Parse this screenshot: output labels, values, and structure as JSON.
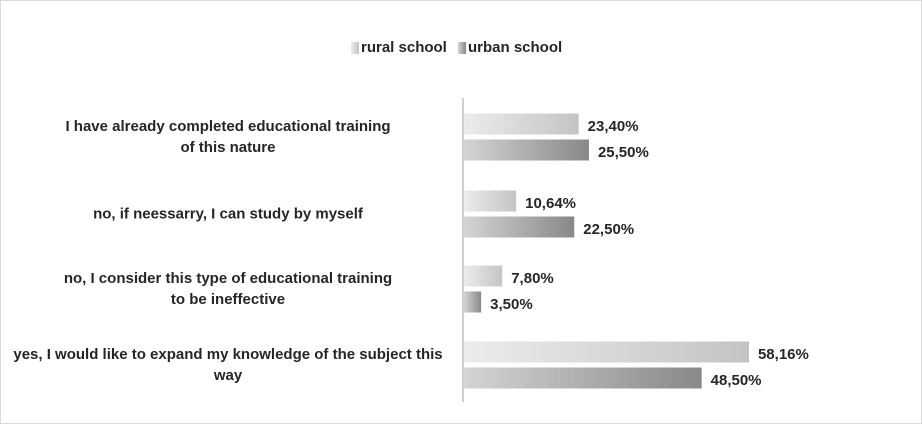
{
  "chart_data": {
    "type": "bar",
    "orientation": "horizontal",
    "categories": [
      "I have already completed educational training of this nature",
      "no, if neessarry, I can study by myself",
      "no, I consider this type of educational training to be ineffective",
      "yes, I would like to expand my knowledge of the subject this way"
    ],
    "series": [
      {
        "name": "rural school",
        "color": [
          "#ececec",
          "#c4c4c4"
        ],
        "values": [
          23.4,
          10.64,
          7.8,
          58.16
        ],
        "value_labels": [
          "23,40%",
          "10,64%",
          "7,80%",
          "58,16%"
        ]
      },
      {
        "name": "urban school",
        "color": [
          "#d4d4d4",
          "#888888"
        ],
        "values": [
          25.5,
          22.5,
          3.5,
          48.5
        ],
        "value_labels": [
          "25,50%",
          "22,50%",
          "3,50%",
          "48,50%"
        ]
      }
    ],
    "legend": "top"
  }
}
